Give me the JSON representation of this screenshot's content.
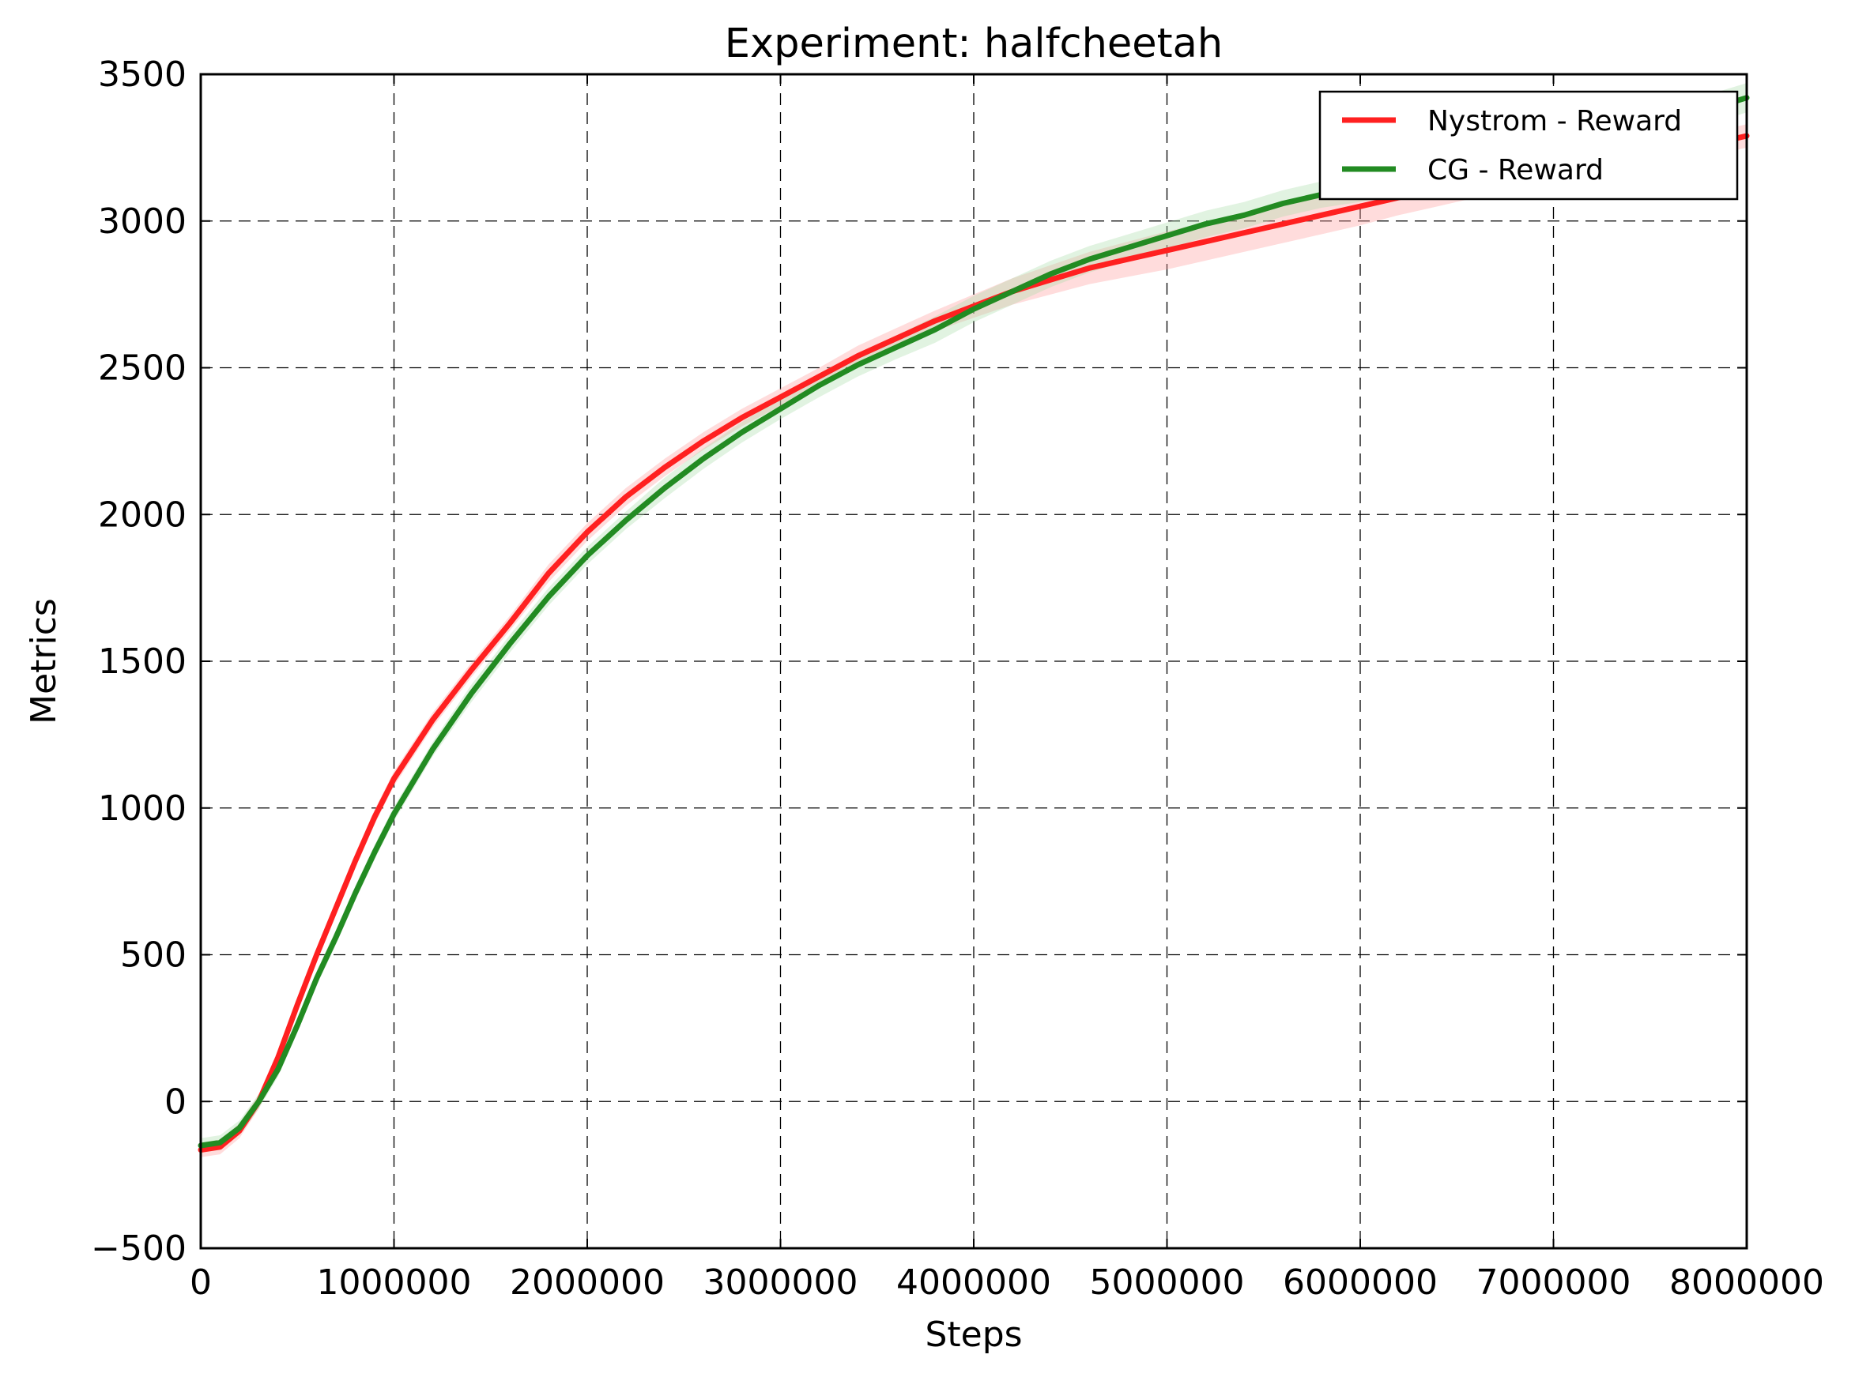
{
  "chart_data": {
    "type": "line",
    "title": "Experiment: halfcheetah",
    "xlabel": "Steps",
    "ylabel": "Metrics",
    "xlim": [
      0,
      8000000
    ],
    "ylim": [
      -500,
      3500
    ],
    "x_ticks": [
      0,
      1000000,
      2000000,
      3000000,
      4000000,
      5000000,
      6000000,
      7000000,
      8000000
    ],
    "x_tick_labels": [
      "0",
      "1000000",
      "2000000",
      "3000000",
      "4000000",
      "5000000",
      "6000000",
      "7000000",
      "8000000"
    ],
    "y_ticks": [
      -500,
      0,
      500,
      1000,
      1500,
      2000,
      2500,
      3000,
      3500
    ],
    "y_tick_labels": [
      "−500",
      "0",
      "500",
      "1000",
      "1500",
      "2000",
      "2500",
      "3000",
      "3500"
    ],
    "grid": true,
    "legend_position": "top-right",
    "x": [
      0,
      100000,
      200000,
      300000,
      400000,
      500000,
      600000,
      700000,
      800000,
      900000,
      1000000,
      1200000,
      1400000,
      1600000,
      1800000,
      2000000,
      2200000,
      2400000,
      2600000,
      2800000,
      3000000,
      3200000,
      3400000,
      3600000,
      3800000,
      4000000,
      4200000,
      4400000,
      4600000,
      4800000,
      5000000,
      5200000,
      5400000,
      5600000,
      5800000,
      6000000,
      6200000,
      6400000,
      6600000,
      6800000,
      7000000,
      7200000,
      7400000,
      7600000,
      7800000,
      8000000
    ],
    "series": [
      {
        "name": "Nystrom - Reward",
        "color": "#ff2020",
        "band_color": "#ff9a9a",
        "values": [
          -165,
          -155,
          -100,
          0,
          150,
          330,
          500,
          660,
          820,
          970,
          1100,
          1300,
          1470,
          1630,
          1800,
          1940,
          2060,
          2160,
          2250,
          2330,
          2400,
          2470,
          2540,
          2600,
          2660,
          2710,
          2760,
          2800,
          2840,
          2870,
          2900,
          2930,
          2960,
          2990,
          3020,
          3050,
          3080,
          3110,
          3140,
          3160,
          3180,
          3200,
          3220,
          3240,
          3260,
          3290
        ],
        "band": [
          25,
          25,
          25,
          25,
          25,
          25,
          25,
          25,
          25,
          25,
          25,
          25,
          25,
          25,
          30,
          30,
          30,
          30,
          30,
          30,
          30,
          30,
          35,
          35,
          35,
          40,
          45,
          50,
          55,
          60,
          65,
          65,
          65,
          65,
          65,
          65,
          60,
          60,
          60,
          55,
          55,
          50,
          50,
          45,
          40,
          40
        ]
      },
      {
        "name": "CG - Reward",
        "color": "#228b22",
        "band_color": "#a8dca8",
        "values": [
          -150,
          -140,
          -90,
          0,
          110,
          260,
          420,
          560,
          710,
          850,
          980,
          1200,
          1390,
          1560,
          1720,
          1860,
          1980,
          2090,
          2190,
          2280,
          2360,
          2440,
          2510,
          2570,
          2630,
          2700,
          2760,
          2820,
          2870,
          2910,
          2950,
          2990,
          3020,
          3060,
          3090,
          3110,
          3140,
          3160,
          3190,
          3220,
          3240,
          3270,
          3300,
          3340,
          3380,
          3420
        ],
        "band": [
          25,
          25,
          25,
          25,
          25,
          25,
          25,
          25,
          25,
          25,
          25,
          25,
          30,
          30,
          30,
          30,
          30,
          35,
          35,
          35,
          35,
          40,
          40,
          40,
          45,
          45,
          45,
          45,
          45,
          45,
          45,
          45,
          45,
          45,
          45,
          45,
          45,
          45,
          45,
          45,
          45,
          45,
          45,
          45,
          50,
          50
        ]
      }
    ]
  }
}
